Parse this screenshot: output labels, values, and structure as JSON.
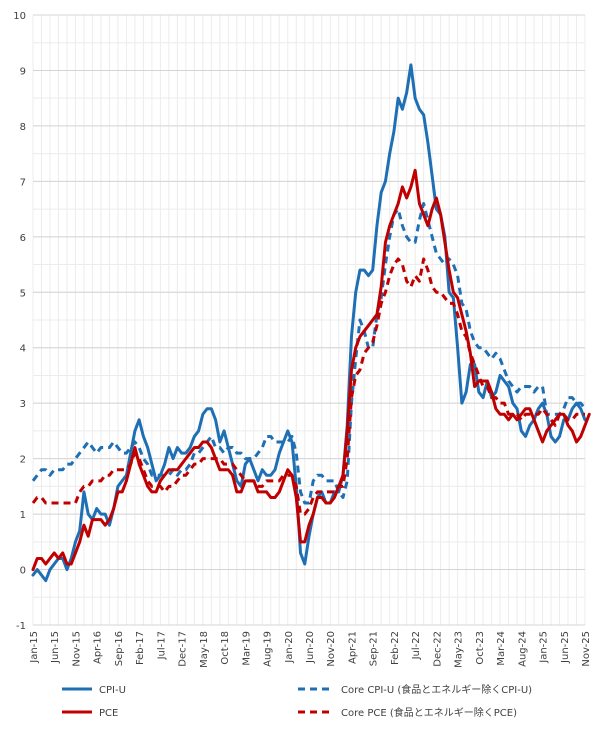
{
  "chart_data": {
    "type": "line",
    "title": "",
    "xlabel": "",
    "ylabel": "",
    "ylim": [
      -1,
      10
    ],
    "yticks": [
      -1,
      0,
      1,
      2,
      3,
      4,
      5,
      6,
      7,
      8,
      9,
      10
    ],
    "grid": true,
    "legend_position": "bottom",
    "x_start": "2015-01",
    "x_tick_labels": [
      "Jan-15",
      "Jun-15",
      "Nov-15",
      "Apr-16",
      "Sep-16",
      "Feb-17",
      "Jul-17",
      "Dec-17",
      "May-18",
      "Oct-18",
      "Mar-19",
      "Aug-19",
      "Jan-20",
      "Jun-20",
      "Nov-20",
      "Apr-21",
      "Sep-21",
      "Feb-22",
      "Jul-22",
      "Dec-22",
      "May-23",
      "Oct-23",
      "Mar-24",
      "Aug-24",
      "Jan-25",
      "Jun-25",
      "Nov-25"
    ],
    "series": [
      {
        "name": "CPI-U",
        "color": "#1f6fb5",
        "dash": "solid",
        "values": [
          -0.1,
          0.0,
          -0.1,
          -0.2,
          0.0,
          0.1,
          0.2,
          0.2,
          0.0,
          0.2,
          0.5,
          0.7,
          1.4,
          1.0,
          0.9,
          1.1,
          1.0,
          1.0,
          0.8,
          1.1,
          1.5,
          1.6,
          1.7,
          2.1,
          2.5,
          2.7,
          2.4,
          2.2,
          1.9,
          1.6,
          1.7,
          1.9,
          2.2,
          2.0,
          2.2,
          2.1,
          2.1,
          2.2,
          2.4,
          2.5,
          2.8,
          2.9,
          2.9,
          2.7,
          2.3,
          2.5,
          2.2,
          1.9,
          1.6,
          1.5,
          1.9,
          2.0,
          1.8,
          1.6,
          1.8,
          1.7,
          1.7,
          1.8,
          2.1,
          2.3,
          2.5,
          2.3,
          1.5,
          0.3,
          0.1,
          0.6,
          1.0,
          1.3,
          1.4,
          1.2,
          1.2,
          1.4,
          1.4,
          1.7,
          2.6,
          4.2,
          5.0,
          5.4,
          5.4,
          5.3,
          5.4,
          6.2,
          6.8,
          7.0,
          7.5,
          7.9,
          8.5,
          8.3,
          8.6,
          9.1,
          8.5,
          8.3,
          8.2,
          7.7,
          7.1,
          6.5,
          6.4,
          6.0,
          5.0,
          4.9,
          4.0,
          3.0,
          3.2,
          3.7,
          3.7,
          3.2,
          3.1,
          3.4,
          3.1,
          3.2,
          3.5,
          3.4,
          3.3,
          3.0,
          2.9,
          2.5,
          2.4,
          2.6,
          2.7,
          2.9,
          3.0,
          2.8,
          2.4,
          2.3,
          2.4,
          2.7,
          2.7,
          2.9,
          3.0,
          2.9,
          2.7
        ],
        "visible_ticks_note": ""
      },
      {
        "name": "Core CPI-U (食品とエネルギー除くCPI-U)",
        "color": "#1f6fb5",
        "dash": "dashed",
        "values": [
          1.6,
          1.7,
          1.8,
          1.8,
          1.7,
          1.8,
          1.8,
          1.8,
          1.9,
          1.9,
          2.0,
          2.1,
          2.2,
          2.3,
          2.2,
          2.1,
          2.2,
          2.2,
          2.2,
          2.3,
          2.2,
          2.1,
          2.1,
          2.2,
          2.3,
          2.2,
          2.0,
          1.9,
          1.7,
          1.7,
          1.7,
          1.7,
          1.7,
          1.8,
          1.7,
          1.8,
          1.8,
          1.9,
          2.1,
          2.1,
          2.2,
          2.3,
          2.4,
          2.2,
          2.2,
          2.1,
          2.2,
          2.2,
          2.1,
          2.1,
          2.0,
          2.0,
          2.0,
          2.1,
          2.2,
          2.4,
          2.4,
          2.3,
          2.3,
          2.3,
          2.3,
          2.4,
          2.1,
          1.4,
          1.2,
          1.2,
          1.6,
          1.7,
          1.7,
          1.6,
          1.6,
          1.6,
          1.4,
          1.3,
          1.6,
          3.0,
          3.8,
          4.5,
          4.3,
          4.0,
          4.0,
          4.6,
          4.9,
          5.5,
          6.0,
          6.4,
          6.5,
          6.2,
          6.0,
          5.9,
          5.9,
          6.3,
          6.6,
          6.3,
          6.0,
          5.7,
          5.6,
          5.5,
          5.6,
          5.5,
          5.3,
          4.8,
          4.7,
          4.3,
          4.1,
          4.0,
          4.0,
          3.9,
          3.8,
          3.9,
          3.8,
          3.6,
          3.4,
          3.3,
          3.2,
          3.3,
          3.3,
          3.3,
          3.2,
          3.3,
          3.3,
          2.8,
          2.8,
          2.8,
          2.8,
          2.9,
          3.1,
          3.1,
          3.0,
          3.0,
          2.9
        ],
        "visible_ticks_note": ""
      },
      {
        "name": "PCE",
        "color": "#c00000",
        "dash": "solid",
        "values": [
          0.0,
          0.2,
          0.2,
          0.1,
          0.2,
          0.3,
          0.2,
          0.3,
          0.1,
          0.1,
          0.3,
          0.5,
          0.8,
          0.6,
          0.9,
          0.9,
          0.9,
          0.8,
          0.9,
          1.1,
          1.4,
          1.4,
          1.6,
          1.9,
          2.2,
          1.9,
          1.7,
          1.5,
          1.4,
          1.4,
          1.6,
          1.7,
          1.8,
          1.8,
          1.8,
          1.9,
          2.0,
          2.1,
          2.2,
          2.2,
          2.3,
          2.3,
          2.2,
          2.0,
          1.8,
          1.8,
          1.8,
          1.7,
          1.4,
          1.4,
          1.6,
          1.6,
          1.6,
          1.4,
          1.4,
          1.4,
          1.3,
          1.3,
          1.4,
          1.6,
          1.8,
          1.7,
          1.3,
          0.5,
          0.5,
          0.8,
          1.0,
          1.3,
          1.3,
          1.2,
          1.2,
          1.3,
          1.5,
          1.7,
          2.5,
          3.6,
          4.0,
          4.2,
          4.3,
          4.4,
          4.5,
          4.6,
          5.1,
          5.9,
          6.2,
          6.4,
          6.6,
          6.9,
          6.7,
          6.9,
          7.2,
          6.6,
          6.4,
          6.2,
          6.5,
          6.7,
          6.4,
          5.9,
          5.4,
          5.0,
          4.9,
          4.6,
          4.3,
          3.9,
          3.3,
          3.4,
          3.4,
          3.4,
          3.2,
          2.9,
          2.8,
          2.8,
          2.7,
          2.8,
          2.7,
          2.8,
          2.9,
          2.9,
          2.7,
          2.5,
          2.3,
          2.5,
          2.6,
          2.7,
          2.8,
          2.8,
          2.6,
          2.5,
          2.3,
          2.4,
          2.6,
          2.8
        ],
        "visible_ticks_note": ""
      },
      {
        "name": "Core PCE (食品とエネルギー除くPCE)",
        "color": "#c00000",
        "dash": "dashed",
        "values": [
          1.2,
          1.3,
          1.3,
          1.2,
          1.2,
          1.2,
          1.2,
          1.2,
          1.2,
          1.2,
          1.2,
          1.4,
          1.5,
          1.5,
          1.6,
          1.6,
          1.6,
          1.7,
          1.7,
          1.8,
          1.8,
          1.8,
          1.8,
          1.9,
          2.1,
          2.0,
          1.8,
          1.6,
          1.5,
          1.5,
          1.5,
          1.4,
          1.5,
          1.5,
          1.6,
          1.7,
          1.7,
          1.8,
          1.9,
          1.9,
          2.0,
          2.0,
          2.0,
          2.0,
          2.0,
          1.9,
          1.9,
          1.9,
          1.8,
          1.7,
          1.6,
          1.6,
          1.6,
          1.5,
          1.5,
          1.6,
          1.6,
          1.6,
          1.6,
          1.7,
          1.7,
          1.7,
          1.5,
          1.0,
          1.0,
          1.1,
          1.3,
          1.4,
          1.4,
          1.4,
          1.4,
          1.4,
          1.5,
          1.5,
          2.0,
          3.1,
          3.5,
          3.6,
          3.9,
          4.0,
          4.1,
          4.4,
          4.8,
          5.0,
          5.3,
          5.5,
          5.6,
          5.5,
          5.2,
          5.1,
          5.3,
          5.2,
          5.6,
          5.4,
          5.1,
          5.0,
          5.0,
          4.9,
          4.8,
          4.8,
          4.6,
          4.3,
          4.2,
          3.9,
          3.7,
          3.5,
          3.3,
          3.3,
          3.1,
          3.1,
          3.0,
          3.0,
          2.8,
          2.8,
          2.8,
          2.7,
          2.8,
          2.8,
          2.8,
          2.8,
          2.9,
          2.8,
          2.7,
          2.6,
          2.8,
          2.8,
          2.7,
          2.7,
          2.8,
          2.8,
          2.8
        ],
        "visible_ticks_note": ""
      }
    ]
  }
}
